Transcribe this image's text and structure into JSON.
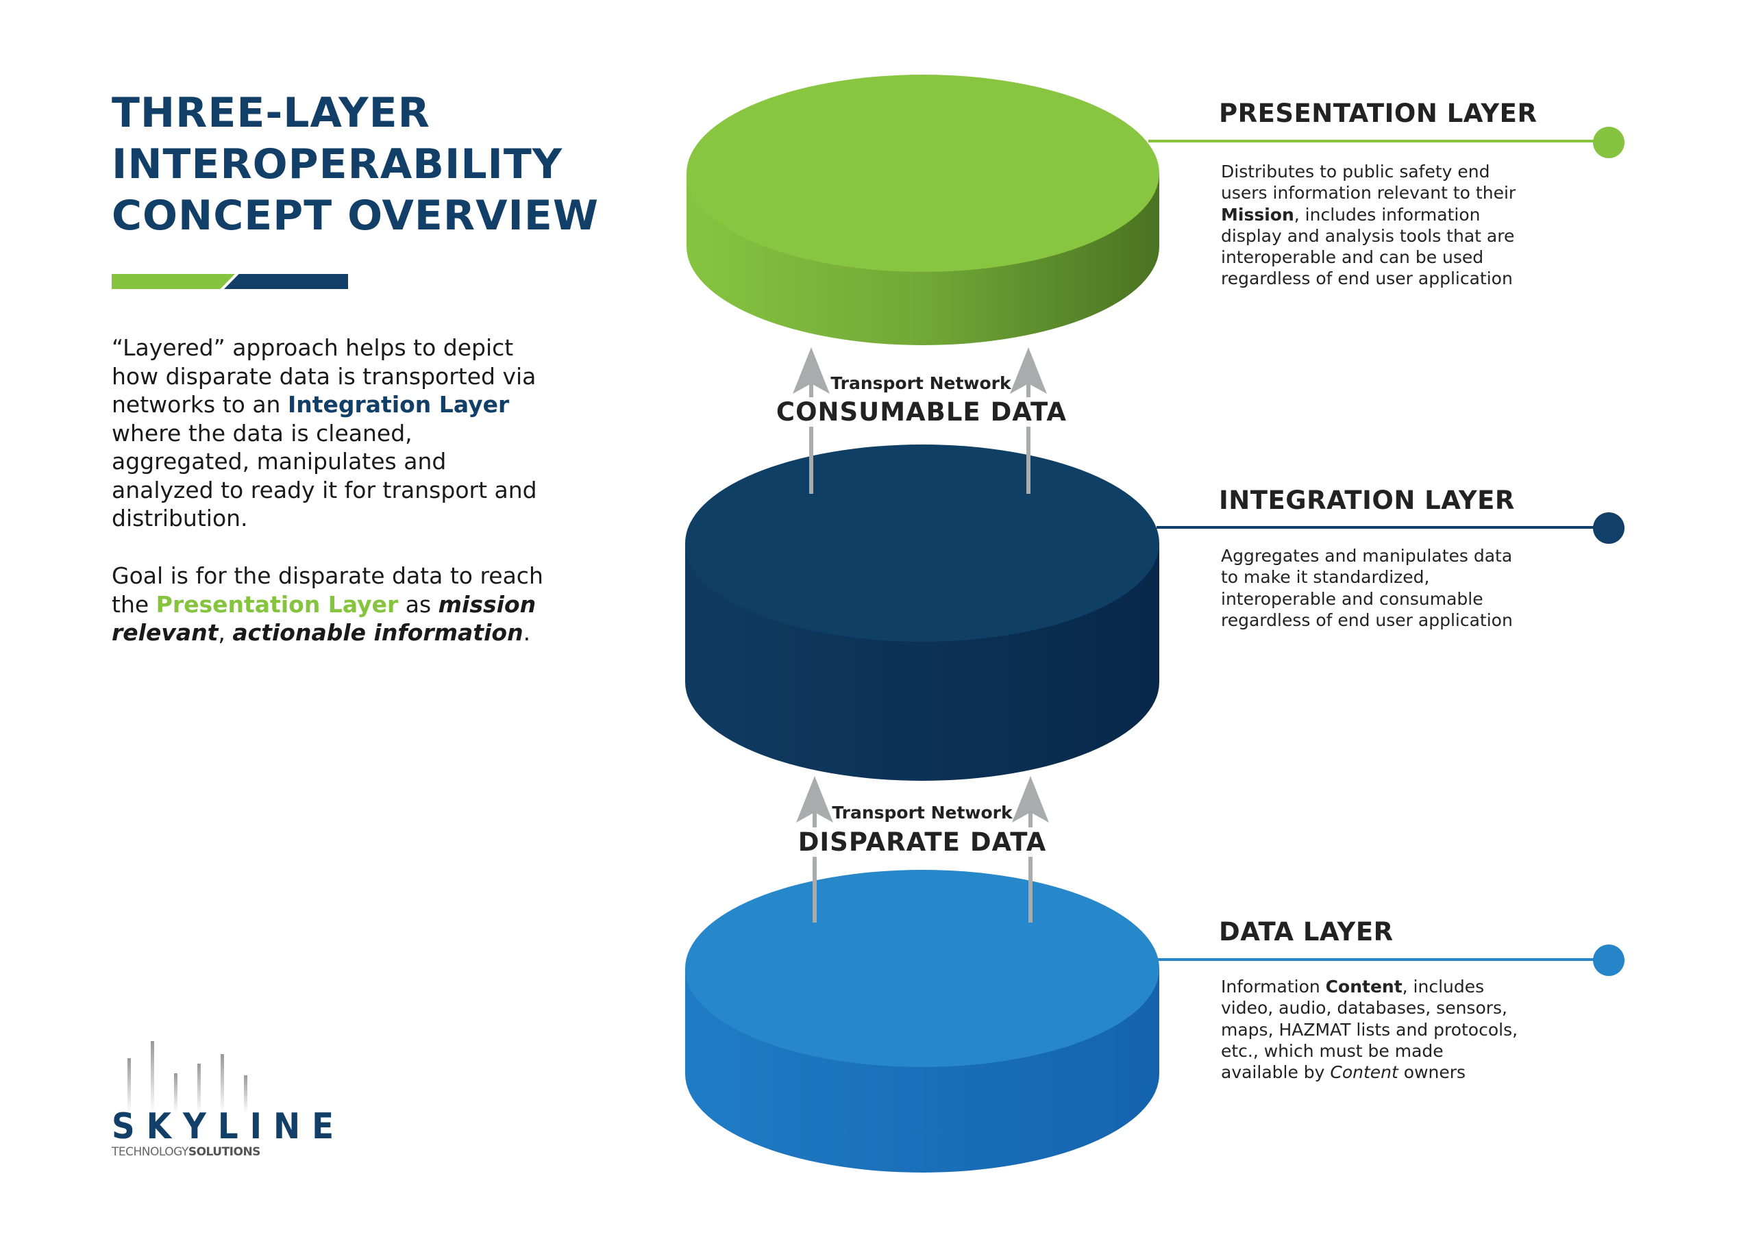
{
  "title": {
    "lines": [
      "THREE-LAYER",
      "INTEROPERABILITY",
      "CONCEPT OVERVIEW"
    ]
  },
  "colors": {
    "navy": "#123f68",
    "green": "#86c440",
    "blue": "#2585c8",
    "gray_arrow": "#a9abac"
  },
  "intro": {
    "p1_a": "“Layered” approach helps to depict how disparate data is transported via networks to an ",
    "p1_highlight": "Integration Layer",
    "p1_b": " where the data is cleaned, aggregated, manipulates and analyzed to ready it for transport and distribution.",
    "p2_a": "Goal is for the disparate data to reach the ",
    "p2_highlight": "Presentation Layer",
    "p2_b": " as ",
    "p2_em1": "mission relevant",
    "p2_c": ", ",
    "p2_em2": "actionable information",
    "p2_d": "."
  },
  "layers": [
    {
      "heading": "PRESENTATION LAYER",
      "color": "#86c440",
      "desc_a": "Distributes to public safety end users information relevant to their ",
      "desc_bold": "Mission",
      "desc_b": ", includes information display and analysis tools that are interoperable and can be used regardless of end user application"
    },
    {
      "heading": "INTEGRATION LAYER",
      "color": "#123f68",
      "desc_a": "Aggregates and manipulates data to make it standardized, interoperable and consumable regardless of end user application"
    },
    {
      "heading": "DATA LAYER",
      "color": "#2585c8",
      "desc_a": "Information ",
      "desc_bold": "Content",
      "desc_b": ", includes video, audio, databases, sensors, maps, HAZMAT lists and protocols, etc., which must be made available by ",
      "desc_italic": "Content",
      "desc_c": " owners"
    }
  ],
  "transports": [
    {
      "small": "Transport Network",
      "big": "CONSUMABLE DATA"
    },
    {
      "small": "Transport Network",
      "big": "DISPARATE DATA"
    }
  ],
  "logo": {
    "name": "SKYLINE",
    "sub_a": "TECHNOLOGY",
    "sub_b": "SOLUTIONS"
  }
}
